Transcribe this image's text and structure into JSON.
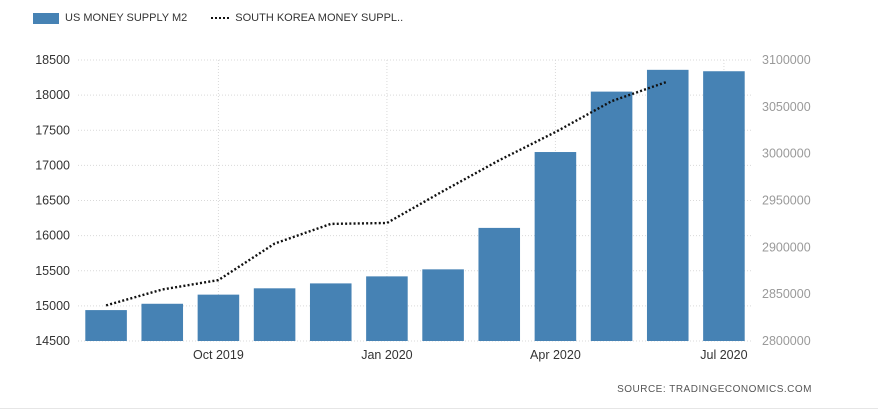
{
  "legend": {
    "bar_label": "US MONEY SUPPLY M2",
    "line_label": "SOUTH KOREA MONEY SUPPL.."
  },
  "source_text": "SOURCE:  TRADINGECONOMICS.COM",
  "colors": {
    "bar": "#4682b4",
    "line": "#111111",
    "grid": "#d9d9d9",
    "left_axis_text": "#333333",
    "right_axis_text": "#9a9a9a"
  },
  "chart_data": {
    "type": "bar",
    "categories": [
      "Aug 2019",
      "Sep 2019",
      "Oct 2019",
      "Nov 2019",
      "Dec 2019",
      "Jan 2020",
      "Feb 2020",
      "Mar 2020",
      "Apr 2020",
      "May 2020",
      "Jun 2020",
      "Jul 2020"
    ],
    "x_tick_labels": [
      {
        "category": "Oct 2019",
        "label": "Oct 2019"
      },
      {
        "category": "Jan 2020",
        "label": "Jan 2020"
      },
      {
        "category": "Apr 2020",
        "label": "Apr 2020"
      },
      {
        "category": "Jul 2020",
        "label": "Jul 2020"
      }
    ],
    "series": [
      {
        "name": "US MONEY SUPPLY M2",
        "type": "bar",
        "axis": "left",
        "values": [
          14940,
          15030,
          15160,
          15250,
          15320,
          15420,
          15520,
          16110,
          17190,
          18050,
          18360,
          18340
        ]
      },
      {
        "name": "SOUTH KOREA MONEY SUPPL..",
        "type": "line",
        "style": "dotted",
        "axis": "right",
        "values": [
          2838000,
          2855000,
          2865000,
          2904000,
          2925000,
          2926000,
          2960000,
          2993000,
          3023000,
          3056000,
          3077000,
          null
        ]
      }
    ],
    "y_left": {
      "min": 14500,
      "max": 18500,
      "ticks": [
        14500,
        15000,
        15500,
        16000,
        16500,
        17000,
        17500,
        18000,
        18500
      ]
    },
    "y_right": {
      "min": 2800000,
      "max": 3100000,
      "ticks": [
        2800000,
        2850000,
        2900000,
        2950000,
        3000000,
        3050000,
        3100000
      ]
    },
    "grid": true,
    "legend_position": "top-left"
  }
}
